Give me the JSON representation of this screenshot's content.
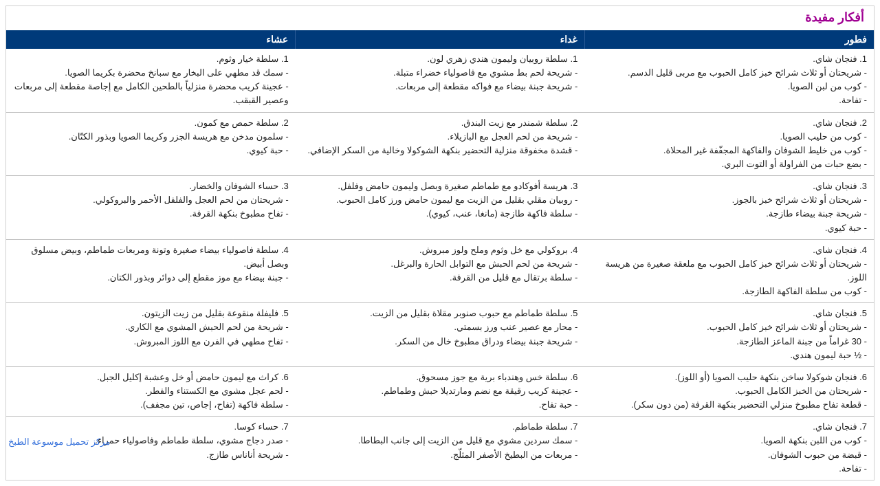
{
  "title": "أفكار مفيدة",
  "colors": {
    "title": "#a00092",
    "header_bg": "#003a7a",
    "header_fg": "#ffffff",
    "row_border": "#bfbfbf",
    "outer_border": "#cfcfcf",
    "text": "#222222",
    "watermark": "#1c5fd6"
  },
  "columns": [
    "فطور",
    "غداء",
    "عشاء"
  ],
  "rows": [
    {
      "breakfast": [
        "1. فنجان شاي.",
        "- شريحتان أو ثلاث شرائح خبز كامل الحبوب مع مربى قليل الدسم.",
        "- كوب من لبن الصويا.",
        "- تفاحة."
      ],
      "lunch": [
        "1. سلطة روبيان وليمون هندي زهري لون.",
        "- شريحة لحم بط مشوي مع فاصولياء خضراء متبلة.",
        "- شريحة جبنة بيضاء مع فواكه مقطعة إلى مربعات."
      ],
      "dinner": [
        "1. سلطة خيار وثوم.",
        "- سمك قد مطهي على البخار مع سبانخ محضرة بكريما الصويا.",
        "- عجينة كريب محضرة منزلياً بالطحين الكامل مع إجاصة مقطعة إلى مربعات وعصير القبقب."
      ]
    },
    {
      "breakfast": [
        "2. فنجان شاي.",
        "- كوب من حليب الصويا.",
        "- كوب من خليط الشوفان والفاكهة المجفّفة غير المحلاة.",
        "- بضع حبات من الفراولة أو التوت البري."
      ],
      "lunch": [
        "2. سلطة شمندر مع زيت البندق.",
        "- شريحة من لحم العجل مع البازيلاء.",
        "- قشدة مخفوقة منزلية التحضير بنكهة الشوكولا وخالية من السكر الإضافي."
      ],
      "dinner": [
        "2. سلطة حمص مع كمون.",
        "- سلمون مدخن مع هريسة الجزر وكريما الصويا وبذور الكتّان.",
        "- حبة كيوي."
      ]
    },
    {
      "breakfast": [
        "3. فنجان شاي.",
        "- شريحتان أو ثلاث شرائح خبز بالجوز.",
        "- شريحة جبنة بيضاء طازجة.",
        "- حبة كيوي."
      ],
      "lunch": [
        "3. هريسة أفوكادو مع طماطم صغيرة وبصل وليمون حامض وفلفل.",
        "- روبيان مقلي بقليل من الزيت مع ليمون حامض ورز كامل الحبوب.",
        "- سلطة فاكهة طازجة (مانغا، عنب، كيوي)."
      ],
      "dinner": [
        "3. حساء الشوفان والخضار.",
        "- شريحتان من لحم العجل والفلفل الأحمر والبروكولي.",
        "- تفاح مطبوخ بنكهة القرفة."
      ]
    },
    {
      "breakfast": [
        "4. فنجان شاي.",
        "- شريحتان أو ثلاث شرائح خبز كامل الحبوب مع ملعقة صغيرة من هريسة اللوز.",
        "- كوب من سلطة الفاكهة الطازجة."
      ],
      "lunch": [
        "4. بروكولي مع خل وثوم وملح ولوز مبروش.",
        "- شريحة من لحم الحبش مع التوابل الحارة والبرغل.",
        "- سلطة برتقال مع قليل من القرفة."
      ],
      "dinner": [
        "4. سلطة فاصولياء بيضاء صغيرة وتونة ومربعات طماطم، وبيض مسلوق وبصل أبيض.",
        "- جبنة بيضاء مع موز مقطع إلى دوائر وبذور الكتان."
      ]
    },
    {
      "breakfast": [
        "5. فنجان شاي.",
        "- شريحتان أو ثلاث شرائح خبز كامل الحبوب.",
        "- 30 غراماً من جبنة الماعز الطازجة.",
        "- ½ حبة ليمون هندي."
      ],
      "lunch": [
        "5. سلطة طماطم مع حبوب صنوبر مقلاة بقليل من الزيت.",
        "- محار مع عصير عنب ورز بسمتي.",
        "- شريحة جبنة بيضاء ودراق مطبوخ خال من السكر."
      ],
      "dinner": [
        "5. فليفلة منقوعة بقليل من زيت الزيتون.",
        "- شريحة من لحم الحبش المشوي مع الكاري.",
        "- تفاح مطهي في الفرن مع اللوز المبروش."
      ]
    },
    {
      "breakfast": [
        "6. فنجان شوكولا ساخن بنكهة حليب الصويا (أو اللوز).",
        "- شريحتان من الخبز الكامل الحبوب.",
        "- قطعة تفاح مطبوخ منزلي التحضير بنكهة القرفة (من دون سكر)."
      ],
      "lunch": [
        "6. سلطة خس وهندباء برية مع جوز مسحوق.",
        "- عجينة كريب رقيقة مع نضم ومارتديلا حبش وطماطم.",
        "- حبة تفاح."
      ],
      "dinner": [
        "6. كراث مع ليمون حامض أو خل وعشبة إكليل الجبل.",
        "- لحم عجل مشوي مع الكستناء والفطر.",
        "- سلطة فاكهة (تفاح، إجاص، تين مجفف)."
      ]
    },
    {
      "breakfast": [
        "7. فنجان شاي.",
        "- كوب من اللبن بنكهة الصويا.",
        "- قبضة من حبوب الشوفان.",
        "- تفاحة."
      ],
      "lunch": [
        "7. سلطة طماطم.",
        "- سمك سردين مشوي مع قليل من الزيت إلى جانب البطاطا.",
        "- مربعات من البطيخ الأصفر المثلّج."
      ],
      "dinner": [
        "7. حساء كوسا.",
        "- صدر دجاج مشوي، سلطة طماطم وفاصولياء حمراء.",
        "- شريحة أناناس طازج."
      ]
    }
  ],
  "watermark": "مركز تحميل موسوعة الطبخ"
}
